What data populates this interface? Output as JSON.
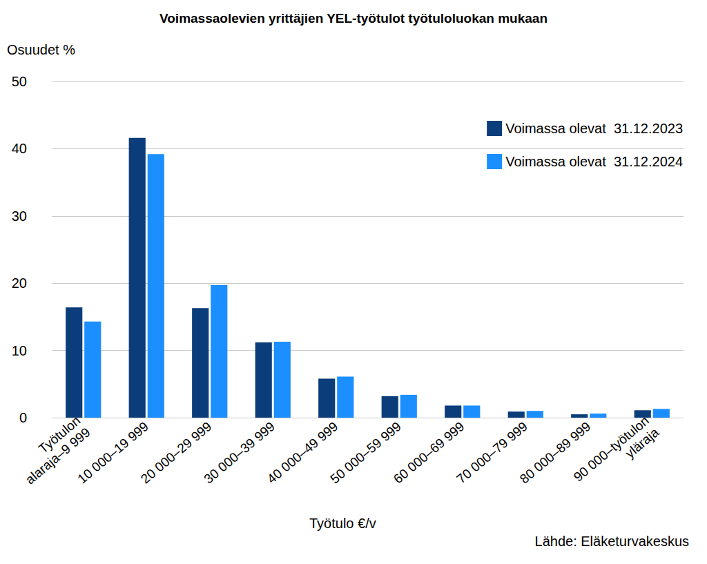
{
  "chart_data": {
    "type": "bar",
    "title": "Voimassaolevien yrittäjien YEL-työtulot työtuloluokan mukaan",
    "y_label": "Osuudet %",
    "x_label": "Työtulo €/v",
    "source": "Lähde: Eläketurvakeskus",
    "categories": [
      "Työtulon\nalaraja–9 999",
      "10 000–19 999",
      "20 000–29 999",
      "30 000–39 999",
      "40 000–49 999",
      "50 000–59 999",
      "60 000–69 999",
      "70 000–79 999",
      "80 000–89 999",
      "90 000–työtulon\nyläraja"
    ],
    "series": [
      {
        "name": "Voimassa olevat  31.12.2023",
        "color": "#0b3d7a",
        "values": [
          16.4,
          41.6,
          16.3,
          11.2,
          5.8,
          3.2,
          1.8,
          0.9,
          0.5,
          1.1
        ]
      },
      {
        "name": "Voimassa olevat  31.12.2024",
        "color": "#1b8fff",
        "values": [
          14.3,
          39.2,
          19.7,
          11.3,
          6.1,
          3.4,
          1.8,
          1.0,
          0.6,
          1.3
        ]
      }
    ],
    "ylim": [
      0,
      50
    ],
    "yticks": [
      0,
      10,
      20,
      30,
      40,
      50
    ],
    "grid": true,
    "legend": "upper right"
  }
}
